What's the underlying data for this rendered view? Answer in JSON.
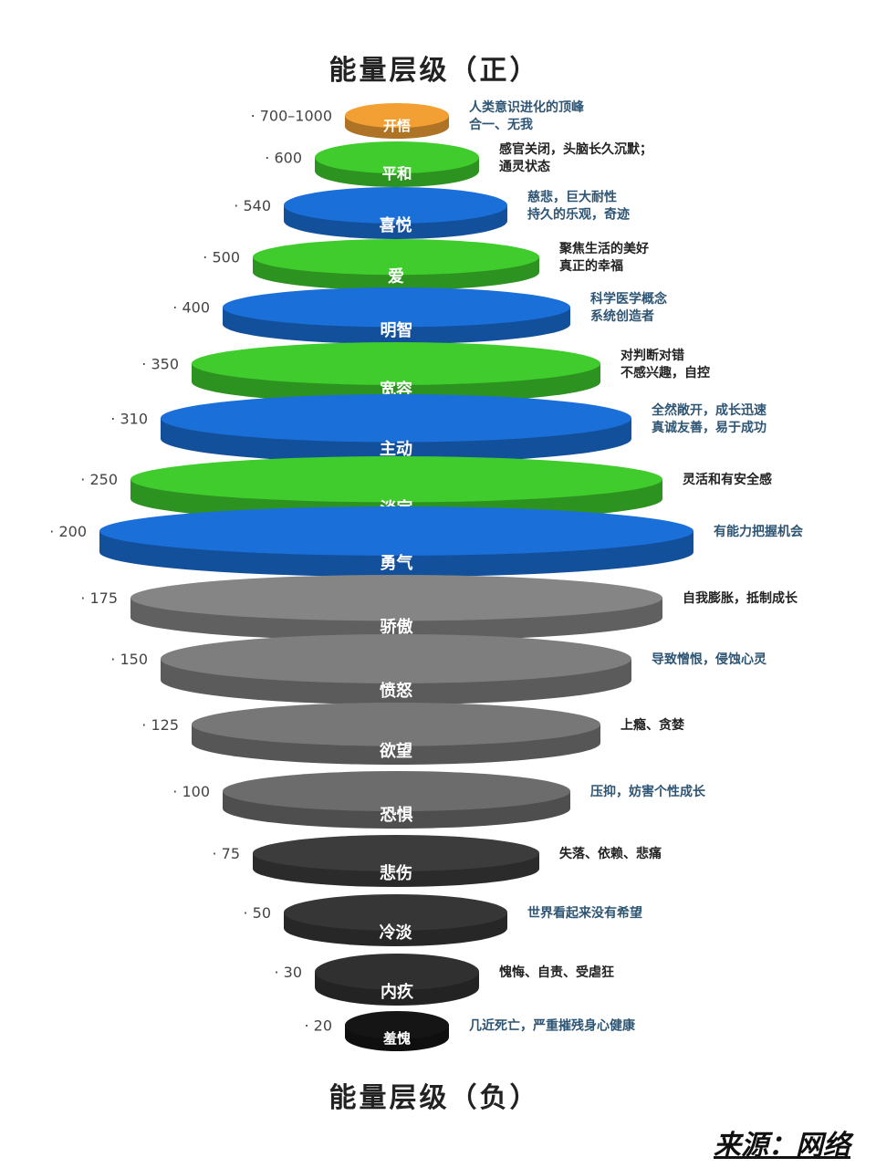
{
  "title_positive": "能量层级（正）",
  "title_negative": "能量层级（负）",
  "source": "来源：网络",
  "levels": [
    {
      "value": "· 700–1000",
      "name": "开悟",
      "color": "#f2a033",
      "desc": [
        "人类意识进化的顶峰",
        "合一、无我"
      ],
      "desc_color": "#2e5573"
    },
    {
      "value": "· 600",
      "name": "平和",
      "color": "#3fcc2c",
      "desc": [
        "感官关闭，头脑长久沉默；",
        "通灵状态"
      ],
      "desc_color": "#222222"
    },
    {
      "value": "· 540",
      "name": "喜悦",
      "color": "#1b6fd8",
      "desc": [
        "慈悲，巨大耐性",
        "持久的乐观，奇迹"
      ],
      "desc_color": "#2e5573"
    },
    {
      "value": "· 500",
      "name": "爱",
      "color": "#3fcc2c",
      "desc": [
        "聚焦生活的美好",
        "真正的幸福"
      ],
      "desc_color": "#222222"
    },
    {
      "value": "· 400",
      "name": "明智",
      "color": "#1b6fd8",
      "desc": [
        "科学医学概念",
        "系统创造者"
      ],
      "desc_color": "#2e5573"
    },
    {
      "value": "· 350",
      "name": "宽容",
      "color": "#3fcc2c",
      "desc": [
        "对判断对错",
        "不感兴趣，自控"
      ],
      "desc_color": "#222222"
    },
    {
      "value": "· 310",
      "name": "主动",
      "color": "#1b6fd8",
      "desc": [
        "全然敞开，成长迅速",
        "真诚友善，易于成功"
      ],
      "desc_color": "#2e5573"
    },
    {
      "value": "· 250",
      "name": "淡定",
      "color": "#3fcc2c",
      "desc": [
        "灵活和有安全感"
      ],
      "desc_color": "#222222"
    },
    {
      "value": "· 200",
      "name": "勇气",
      "color": "#1b6fd8",
      "desc": [
        "有能力把握机会"
      ],
      "desc_color": "#2e5573"
    },
    {
      "value": "· 175",
      "name": "骄傲",
      "color": "#858585",
      "desc": [
        "自我膨胀，抵制成长"
      ],
      "desc_color": "#222222"
    },
    {
      "value": "· 150",
      "name": "愤怒",
      "color": "#7e7e7e",
      "desc": [
        "导致憎恨，侵蚀心灵"
      ],
      "desc_color": "#2e5573"
    },
    {
      "value": "· 125",
      "name": "欲望",
      "color": "#777777",
      "desc": [
        "上瘾、贪婪"
      ],
      "desc_color": "#222222"
    },
    {
      "value": "· 100",
      "name": "恐惧",
      "color": "#6c6c6c",
      "desc": [
        "压抑，妨害个性成长"
      ],
      "desc_color": "#2e5573"
    },
    {
      "value": "· 75",
      "name": "悲伤",
      "color": "#3c3c3c",
      "desc": [
        "失落、依赖、悲痛"
      ],
      "desc_color": "#222222"
    },
    {
      "value": "· 50",
      "name": "冷淡",
      "color": "#363636",
      "desc": [
        "世界看起来没有希望"
      ],
      "desc_color": "#2e5573"
    },
    {
      "value": "· 30",
      "name": "内疚",
      "color": "#303030",
      "desc": [
        "愧悔、自责、受虐狂"
      ],
      "desc_color": "#222222"
    },
    {
      "value": "· 20",
      "name": "羞愧",
      "color": "#151515",
      "desc": [
        "几近死亡，严重摧残身心健康"
      ],
      "desc_color": "#2e5573"
    }
  ]
}
